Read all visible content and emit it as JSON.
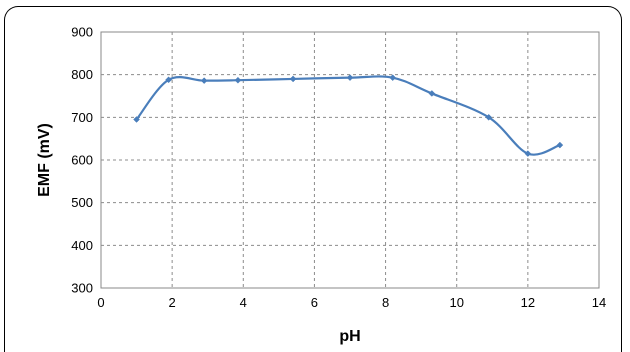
{
  "chart_data": {
    "type": "line",
    "xlabel": "pH",
    "ylabel": "EMF (mV)",
    "xlim": [
      0,
      14
    ],
    "ylim": [
      300,
      900
    ],
    "x_ticks": [
      "0",
      "2",
      "4",
      "6",
      "8",
      "10",
      "12",
      "14"
    ],
    "y_ticks": [
      "300",
      "400",
      "500",
      "600",
      "700",
      "800",
      "900"
    ],
    "grid": true,
    "line_color": "#4A7EBB",
    "series": [
      {
        "x": [
          1.0,
          1.9,
          2.9,
          3.85,
          5.4,
          7.0,
          8.2,
          9.3,
          10.9,
          12.0,
          12.9
        ],
        "values": [
          695,
          788,
          786,
          787,
          790,
          793,
          793,
          756,
          700,
          615,
          635
        ]
      }
    ]
  }
}
